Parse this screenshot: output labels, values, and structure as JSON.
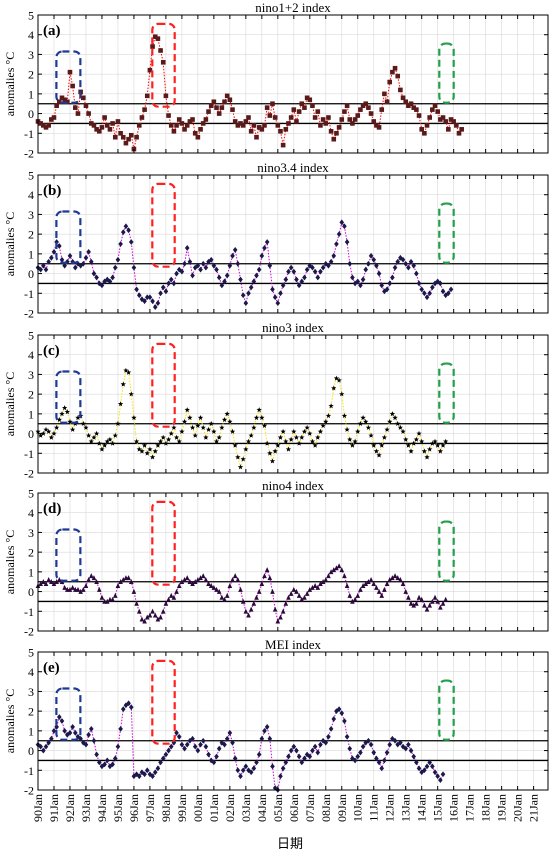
{
  "figure": {
    "xlabel": "日期"
  },
  "x_ticks": [
    "90Jan",
    "91Jan",
    "92Jan",
    "93Jan",
    "94Jan",
    "95Jan",
    "96Jan",
    "97Jan",
    "98Jan",
    "99Jan",
    "00Jan",
    "01Jan",
    "02Jan",
    "03Jan",
    "04Jan",
    "05Jan",
    "06Jan",
    "07Jan",
    "08Jan",
    "09Jan",
    "10Jan",
    "11Jan",
    "12Jan",
    "13Jan",
    "14Jan",
    "15Jan",
    "16Jan",
    "17Jan",
    "18Jan",
    "19Jan",
    "20Jan",
    "21Jan"
  ],
  "colors": {
    "background": "#ffffff",
    "grid": "#d9d9d9",
    "threshold": "#000000",
    "box_blue": "#1f3a93",
    "box_red": "#ff2020",
    "box_green": "#22a04a"
  },
  "chart_data": [
    {
      "type": "line",
      "label": "(a)",
      "title": "nino1+2 index",
      "ylabel": "anomalies °C",
      "ylim": [
        -2,
        5
      ],
      "yticks": [
        -2,
        -1,
        0,
        1,
        2,
        3,
        4,
        5
      ],
      "thresholds": [
        0.5,
        -0.5
      ],
      "marker": "square",
      "marker_color": "#5a1a1a",
      "line_color": "#ff0000",
      "line_style": "dotted",
      "x_start": "1990-01",
      "x_step_months": 2,
      "values": [
        -0.4,
        -0.5,
        -0.6,
        -0.7,
        -0.6,
        -0.3,
        -0.2,
        0.4,
        0.6,
        0.8,
        0.7,
        0.6,
        2.1,
        1.4,
        0.3,
        0.0,
        1.1,
        0.8,
        0.4,
        0.0,
        -0.5,
        -0.6,
        -0.8,
        -0.9,
        -0.7,
        -0.2,
        -0.6,
        -0.8,
        -0.5,
        -1.2,
        -0.4,
        -1.0,
        -1.2,
        -1.5,
        -1.3,
        -1.1,
        -1.8,
        -1.2,
        -0.6,
        -0.2,
        0.2,
        0.9,
        2.2,
        3.4,
        3.9,
        3.8,
        3.2,
        2.6,
        0.9,
        -0.1,
        -0.6,
        -0.9,
        -0.6,
        -0.3,
        -0.5,
        -0.8,
        -0.6,
        -0.4,
        -0.3,
        -1.0,
        -1.2,
        -0.8,
        -0.5,
        -0.3,
        0.1,
        0.4,
        0.6,
        0.3,
        0.0,
        0.3,
        0.6,
        0.9,
        0.7,
        0.2,
        -0.4,
        -0.6,
        -0.5,
        -0.6,
        -0.4,
        -0.2,
        -0.9,
        -0.6,
        -1.2,
        -0.7,
        -0.8,
        -0.6,
        0.3,
        -0.1,
        0.5,
        -0.2,
        -0.6,
        -0.9,
        -1.6,
        -0.8,
        -0.5,
        -0.2,
        0.2,
        -0.4,
        0.1,
        0.5,
        0.3,
        0.8,
        0.7,
        0.4,
        -0.2,
        0.1,
        -0.6,
        -0.3,
        -0.5,
        -0.2,
        -0.9,
        -1.3,
        -1.0,
        -0.7,
        -0.3,
        0.1,
        0.4,
        -0.3,
        -0.5,
        -0.3,
        -0.1,
        0.2,
        0.4,
        0.5,
        0.3,
        0.0,
        -0.4,
        -0.6,
        -0.7,
        0.2,
        1.0,
        0.6,
        1.6,
        2.1,
        2.3,
        1.9,
        1.2,
        0.8,
        0.6,
        0.4,
        0.5,
        0.3,
        0.2,
        -0.1,
        -0.8,
        -1.0,
        -0.6,
        -0.2,
        0.2,
        0.4,
        0.1,
        -0.3,
        -0.2,
        -0.4,
        -0.8,
        -0.3,
        -0.4,
        -0.6,
        -1.0,
        -0.8
      ]
    },
    {
      "type": "line",
      "label": "(b)",
      "title": "nino3.4 index",
      "ylabel": "anomalies °C",
      "ylim": [
        -2,
        5
      ],
      "yticks": [
        -2,
        -1,
        0,
        1,
        2,
        3,
        4,
        5
      ],
      "thresholds": [
        0.5,
        -0.5
      ],
      "marker": "diamond",
      "marker_color": "#1a1a4a",
      "line_color": "#cc00cc",
      "line_style": "dotted",
      "x_start": "1990-01",
      "x_step_months": 2,
      "values": [
        0.3,
        0.2,
        0.4,
        0.2,
        0.6,
        0.8,
        1.1,
        1.6,
        1.4,
        0.7,
        0.4,
        0.6,
        0.9,
        0.6,
        0.3,
        0.5,
        0.4,
        0.5,
        0.8,
        1.1,
        0.6,
        0.0,
        -0.2,
        -0.5,
        -0.6,
        -0.4,
        -0.3,
        -0.4,
        -0.2,
        0.3,
        0.7,
        1.5,
        2.1,
        2.4,
        2.2,
        1.6,
        0.3,
        -0.8,
        -1.1,
        -1.3,
        -1.4,
        -1.2,
        -1.2,
        -1.4,
        -1.7,
        -1.5,
        -1.0,
        -0.7,
        -0.9,
        -0.5,
        -0.3,
        -0.5,
        0.0,
        0.2,
        0.1,
        0.5,
        1.3,
        0.6,
        -0.1,
        0.3,
        0.4,
        0.2,
        0.5,
        0.3,
        0.6,
        0.7,
        0.4,
        0.2,
        -0.2,
        -0.6,
        -0.4,
        -0.1,
        0.4,
        0.9,
        1.2,
        0.5,
        -0.3,
        -1.1,
        -1.5,
        -1.0,
        -0.7,
        -0.4,
        -0.1,
        0.2,
        0.9,
        1.3,
        1.6,
        0.4,
        -0.8,
        -1.2,
        -1.5,
        -1.0,
        -0.6,
        -0.3,
        0.1,
        0.3,
        0.1,
        -0.3,
        -0.6,
        -0.4,
        -0.2,
        0.2,
        0.4,
        0.3,
        0.1,
        -0.2,
        0.1,
        0.3,
        0.5,
        0.4,
        0.6,
        0.9,
        1.5,
        2.0,
        2.6,
        2.4,
        1.6,
        0.5,
        -0.2,
        -0.5,
        -0.4,
        -0.6,
        -0.3,
        0.2,
        0.5,
        0.9,
        0.7,
        0.4,
        0.0,
        -0.6,
        -0.9,
        -0.8,
        -0.5,
        -0.2,
        0.3,
        0.6,
        0.8,
        0.7,
        0.5,
        0.3,
        0.6,
        0.4,
        0.0,
        -0.5,
        -0.8,
        -1.0,
        -1.2,
        -1.0,
        -0.7,
        -0.5,
        -0.4,
        -0.5,
        -0.9,
        -1.1,
        -1.0,
        -0.8
      ]
    },
    {
      "type": "line",
      "label": "(c)",
      "title": "nino3 index",
      "ylabel": "anomalies °C",
      "ylim": [
        -2,
        5
      ],
      "yticks": [
        -2,
        -1,
        0,
        1,
        2,
        3,
        4,
        5
      ],
      "thresholds": [
        0.5,
        -0.5
      ],
      "marker": "star",
      "marker_color": "#000000",
      "line_color": "#ffe000",
      "line_style": "dotted",
      "x_start": "1990-01",
      "x_step_months": 2,
      "values": [
        0.1,
        -0.1,
        0.0,
        0.2,
        0.1,
        -0.2,
        0.0,
        0.3,
        0.7,
        1.0,
        1.3,
        1.1,
        0.6,
        0.2,
        0.5,
        0.8,
        0.9,
        0.5,
        0.3,
        -0.1,
        -0.4,
        -0.2,
        0.0,
        -0.5,
        -0.8,
        -0.6,
        -0.4,
        -0.3,
        -0.5,
        -0.1,
        0.5,
        1.5,
        2.5,
        3.2,
        3.1,
        2.0,
        0.8,
        -0.4,
        -0.8,
        -0.9,
        -0.6,
        -1.0,
        -0.8,
        -1.2,
        -0.9,
        -0.6,
        -0.4,
        -0.2,
        -0.5,
        -0.3,
        0.0,
        0.3,
        -0.2,
        -0.4,
        0.1,
        0.6,
        1.2,
        0.8,
        0.3,
        -0.1,
        0.4,
        0.8,
        0.3,
        -0.2,
        0.2,
        0.5,
        0.1,
        -0.4,
        -0.2,
        0.3,
        0.7,
        1.0,
        0.6,
        0.1,
        -0.6,
        -1.2,
        -1.7,
        -1.3,
        -0.8,
        -0.4,
        -0.1,
        0.3,
        0.8,
        1.2,
        0.8,
        0.4,
        -0.5,
        -1.0,
        -1.4,
        -0.9,
        -0.6,
        -0.2,
        0.1,
        -0.4,
        -0.8,
        -0.3,
        0.1,
        -0.2,
        -0.5,
        -0.2,
        0.1,
        0.3,
        0.0,
        -0.4,
        -0.6,
        -0.2,
        0.1,
        0.4,
        0.6,
        0.9,
        1.4,
        2.3,
        2.8,
        2.7,
        2.0,
        0.9,
        0.2,
        -0.3,
        -0.6,
        -0.4,
        0.1,
        0.5,
        0.8,
        0.6,
        0.3,
        -0.1,
        -0.6,
        -0.9,
        -1.1,
        -0.6,
        -0.2,
        0.2,
        0.6,
        1.0,
        0.8,
        0.5,
        0.3,
        0.1,
        -0.3,
        -0.6,
        -0.9,
        -0.5,
        -0.3,
        0.0,
        -0.4,
        -0.9,
        -1.2,
        -0.8,
        -0.5,
        -0.4,
        -0.6,
        -0.9,
        -0.6,
        -0.4
      ]
    },
    {
      "type": "line",
      "label": "(d)",
      "title": "nino4 index",
      "ylabel": "anomalies °C",
      "ylim": [
        -2,
        5
      ],
      "yticks": [
        -2,
        -1,
        0,
        1,
        2,
        3,
        4,
        5
      ],
      "thresholds": [
        0.5,
        -0.5
      ],
      "marker": "triangle",
      "marker_color": "#2a0a3a",
      "line_color": "#cc00cc",
      "line_style": "dotted",
      "x_start": "1990-01",
      "x_step_months": 2,
      "values": [
        0.3,
        0.4,
        0.5,
        0.4,
        0.6,
        0.5,
        0.4,
        0.5,
        0.6,
        0.5,
        0.2,
        0.1,
        0.1,
        0.2,
        0.1,
        0.1,
        0.0,
        0.1,
        0.3,
        0.6,
        0.8,
        0.7,
        0.5,
        0.1,
        -0.3,
        -0.5,
        -0.5,
        -0.4,
        -0.4,
        -0.2,
        0.3,
        0.5,
        0.6,
        0.7,
        0.7,
        0.5,
        0.0,
        -0.6,
        -1.0,
        -1.4,
        -1.5,
        -1.3,
        -1.2,
        -1.0,
        -1.2,
        -1.4,
        -1.3,
        -1.0,
        -0.6,
        -0.4,
        -0.2,
        -0.3,
        0.0,
        0.3,
        0.5,
        0.6,
        0.7,
        0.5,
        0.4,
        0.5,
        0.6,
        0.7,
        0.8,
        0.6,
        0.4,
        0.3,
        0.2,
        0.1,
        0.0,
        -0.3,
        -0.4,
        -0.2,
        0.3,
        0.6,
        0.8,
        0.6,
        0.1,
        -0.5,
        -1.0,
        -1.2,
        -0.9,
        -0.6,
        -0.3,
        0.0,
        0.4,
        0.8,
        1.1,
        0.7,
        0.0,
        -0.9,
        -1.5,
        -1.3,
        -1.0,
        -0.6,
        -0.3,
        -0.1,
        0.1,
        0.0,
        -0.2,
        -0.4,
        -0.3,
        -0.1,
        0.1,
        0.2,
        0.3,
        0.2,
        0.4,
        0.5,
        0.6,
        0.8,
        1.0,
        1.1,
        1.2,
        1.3,
        1.1,
        0.8,
        0.3,
        -0.2,
        -0.5,
        -0.4,
        -0.2,
        0.1,
        0.3,
        0.4,
        0.5,
        0.6,
        0.4,
        0.2,
        0.0,
        -0.2,
        0.1,
        0.4,
        0.6,
        0.7,
        0.8,
        0.7,
        0.6,
        0.4,
        0.0,
        -0.3,
        -0.6,
        -0.7,
        -0.6,
        -0.3,
        -0.4,
        -0.7,
        -0.9,
        -0.7,
        -0.5,
        -0.3,
        -0.5,
        -0.8,
        -0.6,
        -0.4
      ]
    },
    {
      "type": "line",
      "label": "(e)",
      "title": "MEI index",
      "ylabel": "anomalies °C",
      "ylim": [
        -2,
        5
      ],
      "yticks": [
        -2,
        -1,
        0,
        1,
        2,
        3,
        4,
        5
      ],
      "thresholds": [
        0.5,
        -0.5
      ],
      "marker": "diamond",
      "marker_color": "#1a1a4a",
      "line_color": "#cc00cc",
      "line_style": "dotted",
      "x_start": "1990-01",
      "x_step_months": 2,
      "values": [
        0.3,
        0.2,
        0.0,
        0.2,
        0.4,
        0.6,
        1.0,
        1.2,
        1.7,
        1.5,
        1.0,
        0.8,
        0.9,
        1.2,
        0.9,
        0.7,
        0.6,
        0.4,
        0.3,
        0.8,
        1.1,
        0.5,
        -0.2,
        -0.6,
        -0.8,
        -0.7,
        -0.5,
        -0.8,
        -0.7,
        -0.4,
        0.2,
        1.1,
        2.1,
        2.3,
        2.4,
        2.2,
        -1.3,
        -1.2,
        -1.3,
        -1.1,
        -1.2,
        -1.0,
        -1.2,
        -1.3,
        -1.1,
        -0.9,
        -0.6,
        -0.4,
        -0.2,
        0.0,
        0.2,
        0.4,
        0.9,
        0.7,
        0.3,
        0.1,
        0.3,
        0.5,
        0.6,
        0.2,
        0.0,
        0.3,
        0.5,
        0.2,
        -0.2,
        -0.5,
        -0.6,
        -0.3,
        0.1,
        0.4,
        0.3,
        0.6,
        0.9,
        0.4,
        -0.4,
        -1.0,
        -1.3,
        -1.0,
        -0.8,
        -1.0,
        -1.1,
        -0.9,
        -0.6,
        -0.2,
        0.6,
        1.0,
        1.2,
        0.6,
        -0.8,
        -1.9,
        -2.0,
        -1.3,
        -0.9,
        -0.6,
        -0.3,
        0.0,
        0.2,
        0.0,
        -0.3,
        -0.6,
        -0.4,
        -0.2,
        -0.3,
        0.0,
        0.2,
        -0.1,
        0.3,
        0.5,
        0.4,
        0.7,
        1.1,
        1.6,
        2.0,
        2.1,
        1.9,
        1.5,
        0.7,
        0.1,
        -0.4,
        -0.5,
        -0.3,
        -0.1,
        0.2,
        0.4,
        0.5,
        0.3,
        -0.1,
        -0.4,
        -0.6,
        -0.9,
        -0.5,
        -0.1,
        0.3,
        0.6,
        0.5,
        0.3,
        0.4,
        0.2,
        0.1,
        0.3,
        0.0,
        -0.3,
        -0.6,
        -0.9,
        -1.1,
        -1.0,
        -0.8,
        -0.6,
        -0.8,
        -1.1,
        -1.3,
        -1.5,
        -1.2
      ]
    }
  ]
}
